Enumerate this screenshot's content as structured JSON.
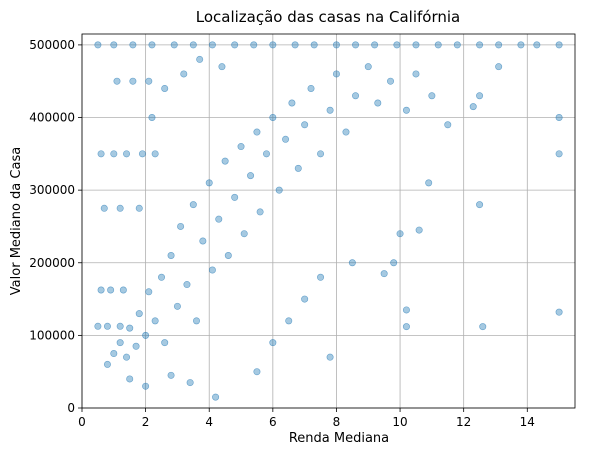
{
  "chart_data": {
    "type": "scatter",
    "title": "Localização das casas na Califórnia",
    "xlabel": "Renda Mediana",
    "ylabel": "Valor Mediano da Casa",
    "xlim": [
      0.0,
      15.5
    ],
    "ylim": [
      0,
      515000
    ],
    "x_ticks": [
      0,
      2,
      4,
      6,
      8,
      10,
      12,
      14
    ],
    "x_tick_labels": [
      "0",
      "2",
      "4",
      "6",
      "8",
      "10",
      "12",
      "14"
    ],
    "y_ticks": [
      0,
      100000,
      200000,
      300000,
      400000,
      500000
    ],
    "y_tick_labels": [
      "0",
      "100000",
      "200000",
      "300000",
      "400000",
      "500000"
    ],
    "grid": true,
    "point_color": "#1f77b4",
    "point_alpha": 0.4,
    "series": [
      {
        "points": [
          [
            0.5,
            500001
          ],
          [
            1.0,
            500001
          ],
          [
            1.6,
            500001
          ],
          [
            2.2,
            500001
          ],
          [
            2.9,
            500001
          ],
          [
            3.5,
            500001
          ],
          [
            4.1,
            500001
          ],
          [
            4.8,
            500001
          ],
          [
            5.4,
            500001
          ],
          [
            6.0,
            500001
          ],
          [
            6.7,
            500001
          ],
          [
            7.3,
            500001
          ],
          [
            8.0,
            500001
          ],
          [
            8.6,
            500001
          ],
          [
            9.2,
            500001
          ],
          [
            9.9,
            500001
          ],
          [
            10.5,
            500001
          ],
          [
            11.2,
            500001
          ],
          [
            11.8,
            500001
          ],
          [
            12.5,
            500001
          ],
          [
            13.1,
            500001
          ],
          [
            13.8,
            500001
          ],
          [
            14.3,
            500001
          ],
          [
            15.0,
            500001
          ],
          [
            1.1,
            450000
          ],
          [
            1.6,
            450000
          ],
          [
            2.1,
            450000
          ],
          [
            0.6,
            350000
          ],
          [
            1.0,
            350000
          ],
          [
            1.4,
            350000
          ],
          [
            1.9,
            350000
          ],
          [
            2.3,
            350000
          ],
          [
            0.7,
            275000
          ],
          [
            1.2,
            275000
          ],
          [
            1.8,
            275000
          ],
          [
            0.6,
            162500
          ],
          [
            0.9,
            162500
          ],
          [
            1.3,
            162500
          ],
          [
            0.5,
            112500
          ],
          [
            0.8,
            112500
          ],
          [
            1.2,
            112500
          ],
          [
            0.8,
            60000
          ],
          [
            1.0,
            75000
          ],
          [
            1.2,
            90000
          ],
          [
            1.4,
            70000
          ],
          [
            1.5,
            110000
          ],
          [
            1.7,
            85000
          ],
          [
            1.8,
            130000
          ],
          [
            2.0,
            100000
          ],
          [
            2.1,
            160000
          ],
          [
            2.3,
            120000
          ],
          [
            2.5,
            180000
          ],
          [
            2.6,
            90000
          ],
          [
            2.8,
            210000
          ],
          [
            3.0,
            140000
          ],
          [
            3.1,
            250000
          ],
          [
            3.3,
            170000
          ],
          [
            3.5,
            280000
          ],
          [
            3.6,
            120000
          ],
          [
            3.8,
            230000
          ],
          [
            4.0,
            310000
          ],
          [
            4.1,
            190000
          ],
          [
            4.3,
            260000
          ],
          [
            4.5,
            340000
          ],
          [
            4.6,
            210000
          ],
          [
            4.8,
            290000
          ],
          [
            5.0,
            360000
          ],
          [
            5.1,
            240000
          ],
          [
            5.3,
            320000
          ],
          [
            5.5,
            380000
          ],
          [
            5.6,
            270000
          ],
          [
            5.8,
            350000
          ],
          [
            6.0,
            400000
          ],
          [
            6.2,
            300000
          ],
          [
            6.4,
            370000
          ],
          [
            6.6,
            420000
          ],
          [
            6.8,
            330000
          ],
          [
            7.0,
            390000
          ],
          [
            7.2,
            440000
          ],
          [
            7.5,
            350000
          ],
          [
            7.8,
            410000
          ],
          [
            8.0,
            460000
          ],
          [
            8.3,
            380000
          ],
          [
            8.6,
            430000
          ],
          [
            9.0,
            470000
          ],
          [
            9.3,
            420000
          ],
          [
            9.7,
            450000
          ],
          [
            10.2,
            410000
          ],
          [
            10.5,
            460000
          ],
          [
            11.0,
            430000
          ],
          [
            11.5,
            390000
          ],
          [
            12.3,
            415000
          ],
          [
            12.5,
            430000
          ],
          [
            13.1,
            470000
          ],
          [
            2.2,
            400000
          ],
          [
            2.6,
            440000
          ],
          [
            3.2,
            460000
          ],
          [
            3.7,
            480000
          ],
          [
            4.4,
            470000
          ],
          [
            1.5,
            40000
          ],
          [
            2.0,
            30000
          ],
          [
            2.8,
            45000
          ],
          [
            3.4,
            35000
          ],
          [
            4.2,
            15000
          ],
          [
            5.5,
            50000
          ],
          [
            6.0,
            90000
          ],
          [
            6.5,
            120000
          ],
          [
            7.0,
            150000
          ],
          [
            7.5,
            180000
          ],
          [
            7.8,
            70000
          ],
          [
            8.5,
            200000
          ],
          [
            9.5,
            185000
          ],
          [
            9.8,
            200000
          ],
          [
            10.0,
            240000
          ],
          [
            10.2,
            135000
          ],
          [
            10.2,
            112000
          ],
          [
            10.6,
            245000
          ],
          [
            10.9,
            310000
          ],
          [
            12.5,
            280000
          ],
          [
            12.6,
            112000
          ],
          [
            15.0,
            400000
          ],
          [
            15.0,
            350000
          ],
          [
            15.0,
            132000
          ]
        ]
      }
    ]
  }
}
